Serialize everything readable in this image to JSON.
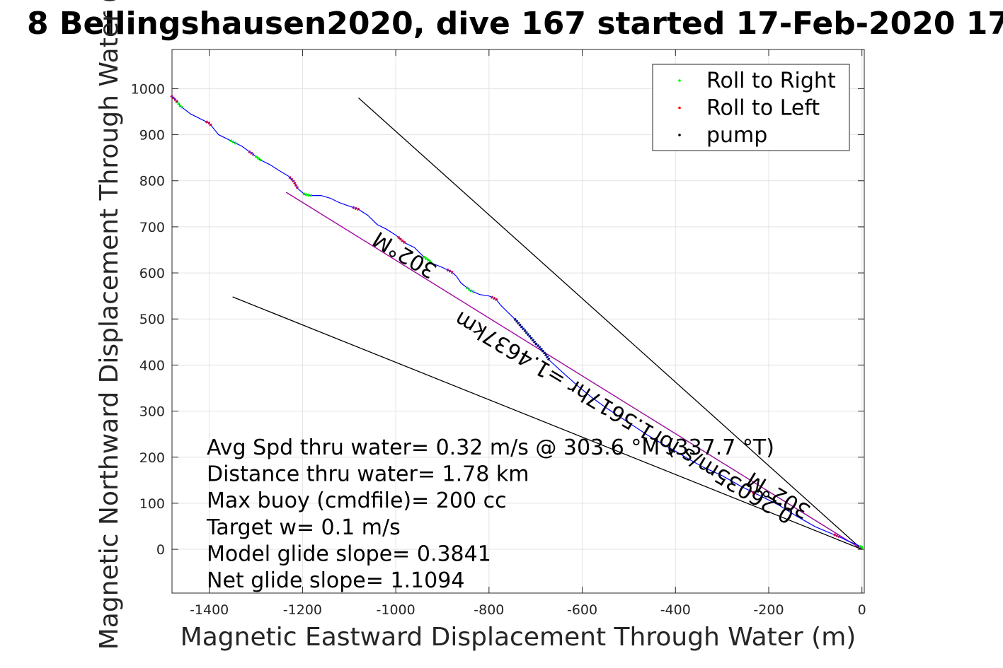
{
  "chart_data": {
    "type": "line",
    "title": "8 Bellingshausen2020, dive 167 started 17-Feb-2020 17",
    "xlabel": "Magnetic Eastward Displacement Through Water (m)",
    "ylabel": "Magnetic Northward Displacement Through Water (",
    "xlim": [
      -1480,
      5
    ],
    "ylim": [
      -95,
      1085
    ],
    "xticks": [
      -1400,
      -1200,
      -1000,
      -800,
      -600,
      -400,
      -200,
      0
    ],
    "yticks": [
      0,
      100,
      200,
      300,
      400,
      500,
      600,
      700,
      800,
      900,
      1000
    ],
    "grid": true,
    "legend": {
      "position": "top-right",
      "entries": [
        {
          "label": "Roll to Right",
          "color": "#00ff00"
        },
        {
          "label": "Roll to Left",
          "color": "#ff0000"
        },
        {
          "label": "pump",
          "color": "#000000"
        }
      ]
    },
    "track": {
      "color": "#0000ff",
      "x": [
        -1482,
        -1472,
        -1462,
        -1440,
        -1420,
        -1400,
        -1380,
        -1350,
        -1330,
        -1310,
        -1290,
        -1270,
        -1250,
        -1230,
        -1220,
        -1210,
        -1195,
        -1180,
        -1160,
        -1140,
        -1120,
        -1100,
        -1080,
        -1060,
        -1040,
        -1020,
        -1000,
        -980,
        -960,
        -940,
        -920,
        -900,
        -880,
        -870,
        -860,
        -840,
        -820,
        -800,
        -785,
        -775,
        -760,
        -745,
        -730,
        -715,
        -700,
        -685,
        -670,
        -640,
        -610,
        -580,
        -550,
        -520,
        -490,
        -460,
        -430,
        -400,
        -370,
        -340,
        -300,
        -260,
        -220,
        -180,
        -140,
        -100,
        -70,
        -50,
        -30,
        -15,
        -5,
        0
      ],
      "y": [
        985,
        975,
        962,
        945,
        935,
        925,
        900,
        885,
        875,
        860,
        845,
        835,
        822,
        810,
        800,
        783,
        770,
        768,
        768,
        762,
        752,
        745,
        738,
        725,
        705,
        695,
        682,
        665,
        655,
        635,
        620,
        612,
        602,
        593,
        578,
        562,
        553,
        550,
        543,
        530,
        515,
        500,
        483,
        465,
        447,
        432,
        410,
        382,
        355,
        330,
        308,
        288,
        268,
        248,
        230,
        213,
        195,
        178,
        160,
        137,
        117,
        97,
        72,
        49,
        36,
        28,
        18,
        12,
        7,
        4
      ]
    },
    "roll_right": {
      "color": "#00ff00",
      "segments": [
        [
          -1470,
          -1458
        ],
        [
          -1355,
          -1340
        ],
        [
          -1300,
          -1288
        ],
        [
          -1198,
          -1180
        ],
        [
          -940,
          -922
        ],
        [
          -848,
          -830
        ],
        [
          -5,
          2
        ]
      ]
    },
    "roll_left": {
      "color": "#cc0044",
      "segments": [
        [
          -1482,
          -1468
        ],
        [
          -1407,
          -1395
        ],
        [
          -1315,
          -1305
        ],
        [
          -1228,
          -1210
        ],
        [
          -1092,
          -1078
        ],
        [
          -995,
          -980
        ],
        [
          -890,
          -876
        ],
        [
          -795,
          -783
        ],
        [
          -240,
          -225
        ],
        [
          -60,
          -48
        ]
      ]
    },
    "pump": {
      "color": "#001060",
      "x_range": [
        -745,
        -670
      ]
    },
    "lines": [
      {
        "name": "heading_line_upper",
        "color": "#000000",
        "x": [
          -1080,
          0
        ],
        "y": [
          980,
          0
        ]
      },
      {
        "name": "avg_speed_line",
        "color": "#000000",
        "x": [
          -1235,
          0
        ],
        "y": [
          775,
          0
        ]
      },
      {
        "name": "avg_speed_line_magenta",
        "color": "#cc00cc",
        "x": [
          -1235,
          0
        ],
        "y": [
          775,
          0
        ]
      },
      {
        "name": "heading_line_lower",
        "color": "#000000",
        "x": [
          -1350,
          0
        ],
        "y": [
          548,
          0
        ]
      }
    ],
    "annotations": [
      "Avg Spd thru water=  0.32 m/s @ 303.6 °M (337.7 °T)",
      "Distance thru water=  1.78 km",
      "Max buoy (cmdfile)= 200 cc",
      "Target w= 0.1 m/s",
      "Model glide slope= 0.3841",
      "Net glide slope= 1.1094"
    ],
    "rotated_labels": {
      "heading_upper": "302°M",
      "heading_lower": "302°M",
      "speed": "0.26035m/s for1.5617hr =1.4637km"
    }
  }
}
